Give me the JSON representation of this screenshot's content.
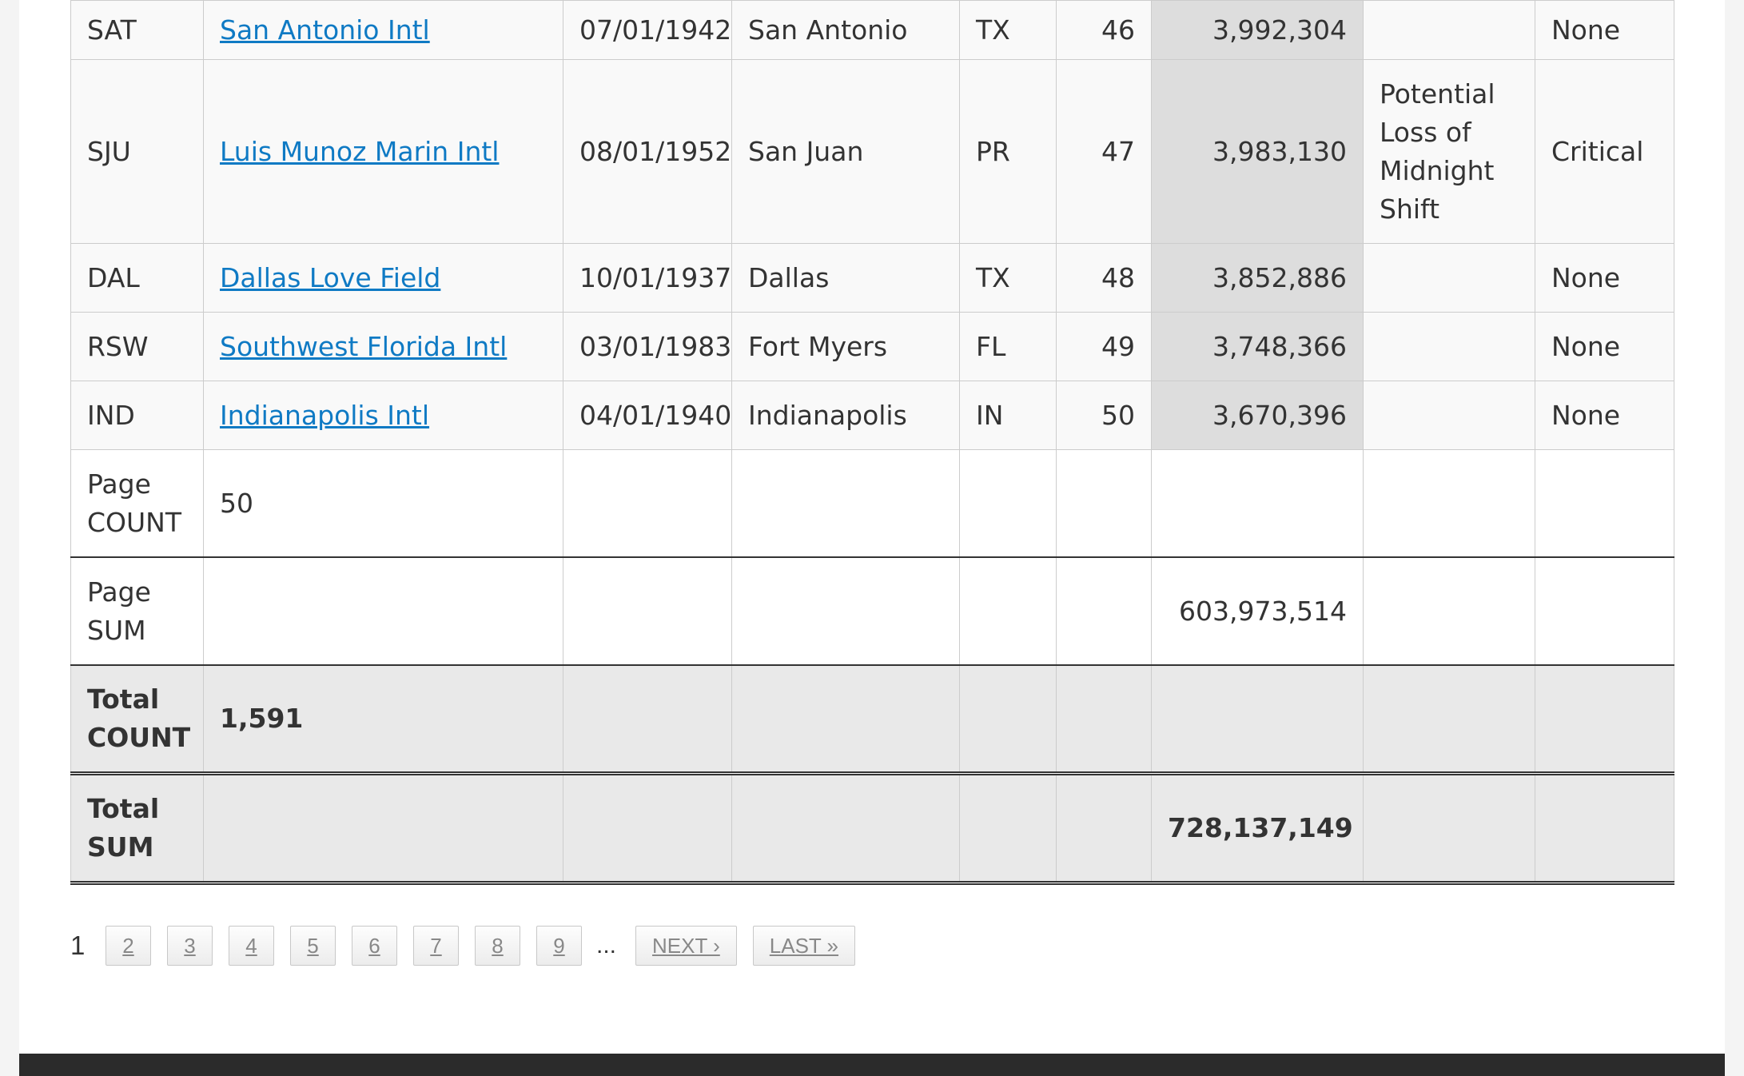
{
  "table": {
    "rows": [
      {
        "code": "SAT",
        "name": "San Antonio Intl",
        "date": "07/01/1942",
        "city": "San Antonio",
        "state": "TX",
        "rank": "46",
        "value": "3,992,304",
        "note": "",
        "status": "None"
      },
      {
        "code": "SJU",
        "name": "Luis Munoz Marin Intl",
        "date": "08/01/1952",
        "city": "San Juan",
        "state": "PR",
        "rank": "47",
        "value": "3,983,130",
        "note": "Potential Loss of Midnight Shift",
        "status": "Critical"
      },
      {
        "code": "DAL",
        "name": "Dallas Love Field",
        "date": "10/01/1937",
        "city": "Dallas",
        "state": "TX",
        "rank": "48",
        "value": "3,852,886",
        "note": "",
        "status": "None"
      },
      {
        "code": "RSW",
        "name": "Southwest Florida Intl",
        "date": "03/01/1983",
        "city": "Fort Myers",
        "state": "FL",
        "rank": "49",
        "value": "3,748,366",
        "note": "",
        "status": "None"
      },
      {
        "code": "IND",
        "name": "Indianapolis Intl",
        "date": "04/01/1940",
        "city": "Indianapolis",
        "state": "IN",
        "rank": "50",
        "value": "3,670,396",
        "note": "",
        "status": "None"
      }
    ],
    "aggregates": {
      "page_count": {
        "label_line1": "Page",
        "label_line2": "COUNT",
        "value": "50"
      },
      "page_sum": {
        "label_line1": "Page",
        "label_line2": "SUM",
        "value": "603,973,514"
      },
      "total_count": {
        "label_line1": "Total",
        "label_line2": "COUNT",
        "value": "1,591"
      },
      "total_sum": {
        "label_line1": "Total",
        "label_line2": "SUM",
        "value": "728,137,149"
      }
    }
  },
  "pagination": {
    "current": "1",
    "pages": [
      "2",
      "3",
      "4",
      "5",
      "6",
      "7",
      "8",
      "9"
    ],
    "ellipsis": "...",
    "next_label": "NEXT ›",
    "last_label": "LAST »"
  },
  "colors": {
    "link": "#0f7ac4",
    "shaded_cell": "#dddddd",
    "total_row": "#e9e9e9",
    "footer": "#2b2b2b"
  }
}
